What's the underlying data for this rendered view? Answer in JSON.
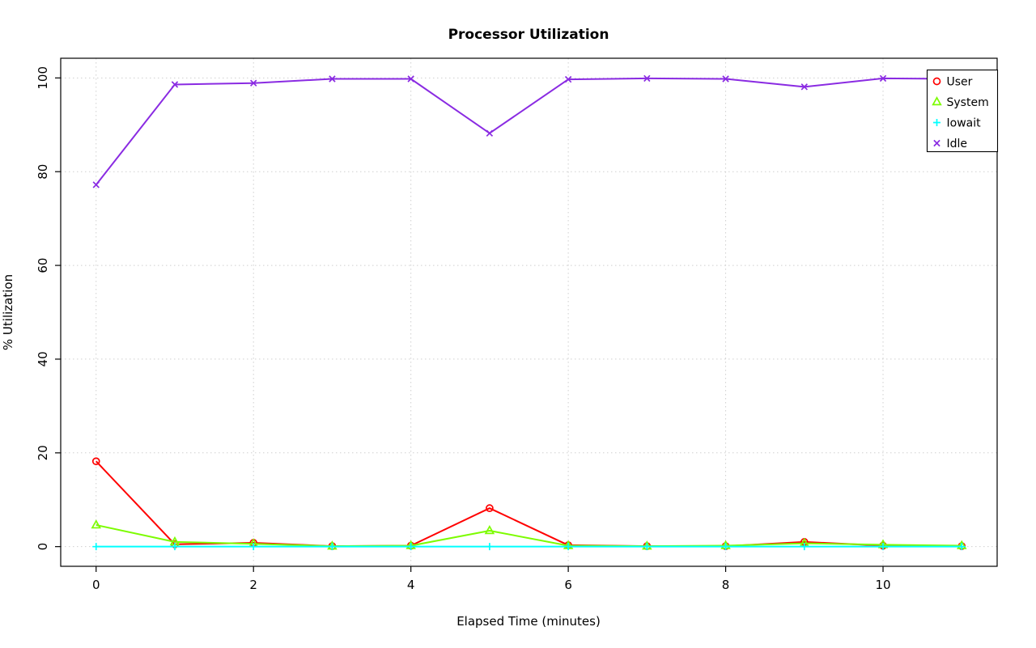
{
  "page": {
    "background": "#ffffff"
  },
  "chart_data": {
    "type": "line",
    "title": "Processor Utilization",
    "xlabel": "Elapsed Time (minutes)",
    "ylabel": "% Utilization",
    "x": [
      0,
      1,
      2,
      3,
      4,
      5,
      6,
      7,
      8,
      9,
      10,
      11
    ],
    "xticks": [
      0,
      2,
      4,
      6,
      8,
      10
    ],
    "yticks": [
      0,
      20,
      40,
      60,
      80,
      100
    ],
    "xlim": [
      -0.45,
      11.45
    ],
    "ylim": [
      -4.2,
      104.2
    ],
    "grid": true,
    "grid_color": "#cfcfcf",
    "axis_color": "#000000",
    "legend_position": "top-right",
    "series": [
      {
        "name": "User",
        "color": "#ff0000",
        "marker": "circle",
        "values": [
          18.2,
          0.5,
          0.8,
          0.1,
          0.2,
          8.2,
          0.3,
          0.1,
          0.1,
          1.0,
          0.2,
          0.1
        ]
      },
      {
        "name": "System",
        "color": "#7cfc00",
        "marker": "triangle",
        "values": [
          4.6,
          1.0,
          0.6,
          0.1,
          0.2,
          3.4,
          0.2,
          0.1,
          0.2,
          0.7,
          0.4,
          0.2
        ]
      },
      {
        "name": "Iowait",
        "color": "#00ffff",
        "marker": "plus",
        "values": [
          0,
          0,
          0,
          0,
          0,
          0,
          0,
          0,
          0,
          0,
          0,
          0
        ]
      },
      {
        "name": "Idle",
        "color": "#8a2be2",
        "marker": "x",
        "values": [
          77.2,
          98.6,
          98.9,
          99.8,
          99.8,
          88.2,
          99.7,
          99.9,
          99.8,
          98.1,
          99.9,
          99.8
        ]
      }
    ]
  }
}
